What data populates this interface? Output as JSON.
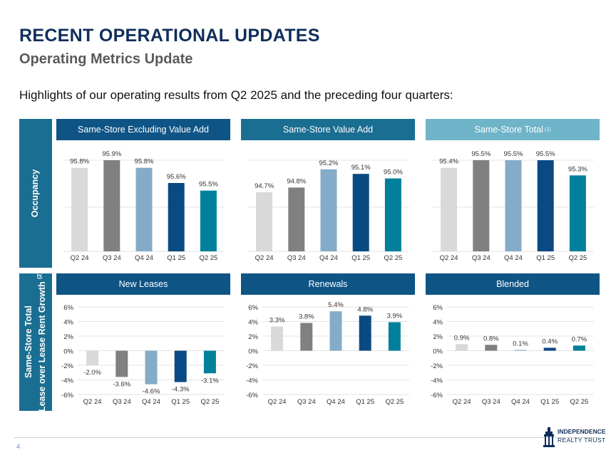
{
  "title": "RECENT OPERATIONAL UPDATES",
  "subtitle": "Operating Metrics Update",
  "highlight": "Highlights of our operating results from Q2 2025 and the preceding four quarters:",
  "side_labels": {
    "occupancy": "Occupancy",
    "lease_line1": "Same-Store Total",
    "lease_line2": "Lease over Lease Rent Growth",
    "lease_sup": "(2)"
  },
  "page_number": "4",
  "logo": {
    "line1": "INDEPENDENCE",
    "line2": "REALTY TRUST"
  },
  "colors": {
    "header_dark": "#0e5485",
    "header_teal": "#1a6e91",
    "header_light": "#6fb4c8",
    "bar_q2_24": "#d9d9d9",
    "bar_q3_24": "#808080",
    "bar_q4_24": "#84acc8",
    "bar_q1_25": "#0a4a83",
    "bar_q2_25": "#00809b"
  },
  "panels": [
    {
      "id": "occ-excl",
      "header": "Same-Store Excluding Value Add",
      "header_sup": "",
      "header_color": "#0e5485"
    },
    {
      "id": "occ-va",
      "header": "Same-Store Value Add",
      "header_sup": "",
      "header_color": "#1a6e91"
    },
    {
      "id": "occ-total",
      "header": "Same-Store Total",
      "header_sup": "(1)",
      "header_color": "#6fb4c8"
    },
    {
      "id": "new-leases",
      "header": "New Leases",
      "header_sup": "",
      "header_color": "#0e5485"
    },
    {
      "id": "renewals",
      "header": "Renewals",
      "header_sup": "",
      "header_color": "#0e5485"
    },
    {
      "id": "blended",
      "header": "Blended",
      "header_sup": "",
      "header_color": "#0e5485"
    }
  ],
  "chart_data": [
    {
      "type": "bar",
      "panel": "occ-excl",
      "categories": [
        "Q2 24",
        "Q3 24",
        "Q4 24",
        "Q1 25",
        "Q2 25"
      ],
      "values": [
        95.8,
        95.9,
        95.8,
        95.6,
        95.5
      ],
      "labels": [
        "95.8%",
        "95.9%",
        "95.8%",
        "95.6%",
        "95.5%"
      ],
      "ylim": [
        94.7,
        95.9
      ],
      "show_y_ticks": false,
      "grid": true
    },
    {
      "type": "bar",
      "panel": "occ-va",
      "categories": [
        "Q2 24",
        "Q3 24",
        "Q4 24",
        "Q1 25",
        "Q2 25"
      ],
      "values": [
        94.7,
        94.8,
        95.2,
        95.1,
        95.0
      ],
      "labels": [
        "94.7%",
        "94.8%",
        "95.2%",
        "95.1%",
        "95.0%"
      ],
      "ylim": [
        93.4,
        95.4
      ],
      "show_y_ticks": false,
      "grid": true
    },
    {
      "type": "bar",
      "panel": "occ-total",
      "categories": [
        "Q2 24",
        "Q3 24",
        "Q4 24",
        "Q1 25",
        "Q2 25"
      ],
      "values": [
        95.4,
        95.5,
        95.5,
        95.5,
        95.3
      ],
      "labels": [
        "95.4%",
        "95.5%",
        "95.5%",
        "95.5%",
        "95.3%"
      ],
      "ylim": [
        94.3,
        95.5
      ],
      "show_y_ticks": false,
      "grid": true
    },
    {
      "type": "bar",
      "panel": "new-leases",
      "categories": [
        "Q2 24",
        "Q3 24",
        "Q4 24",
        "Q1 25",
        "Q2 25"
      ],
      "values": [
        -2.0,
        -3.6,
        -4.6,
        -4.3,
        -3.1
      ],
      "labels": [
        "-2.0%",
        "-3.6%",
        "-4.6%",
        "-4.3%",
        "-3.1%"
      ],
      "ylim": [
        -6,
        6
      ],
      "yticks": [
        "6%",
        "4%",
        "2%",
        "0%",
        "-2%",
        "-4%",
        "-6%"
      ],
      "show_y_ticks": true,
      "grid": true
    },
    {
      "type": "bar",
      "panel": "renewals",
      "categories": [
        "Q2 24",
        "Q3 24",
        "Q4 24",
        "Q1 25",
        "Q2 25"
      ],
      "values": [
        3.3,
        3.8,
        5.4,
        4.8,
        3.9
      ],
      "labels": [
        "3.3%",
        "3.8%",
        "5.4%",
        "4.8%",
        "3.9%"
      ],
      "ylim": [
        -6,
        6
      ],
      "yticks": [
        "6%",
        "4%",
        "2%",
        "0%",
        "-2%",
        "-4%",
        "-6%"
      ],
      "show_y_ticks": true,
      "grid": true
    },
    {
      "type": "bar",
      "panel": "blended",
      "categories": [
        "Q2 24",
        "Q3 24",
        "Q4 24",
        "Q1 25",
        "Q2 25"
      ],
      "values": [
        0.9,
        0.8,
        0.1,
        0.4,
        0.7
      ],
      "labels": [
        "0.9%",
        "0.8%",
        "0.1%",
        "0.4%",
        "0.7%"
      ],
      "ylim": [
        -6,
        6
      ],
      "yticks": [
        "6%",
        "4%",
        "2%",
        "0%",
        "-2%",
        "-4%",
        "-6%"
      ],
      "show_y_ticks": true,
      "grid": true
    }
  ]
}
